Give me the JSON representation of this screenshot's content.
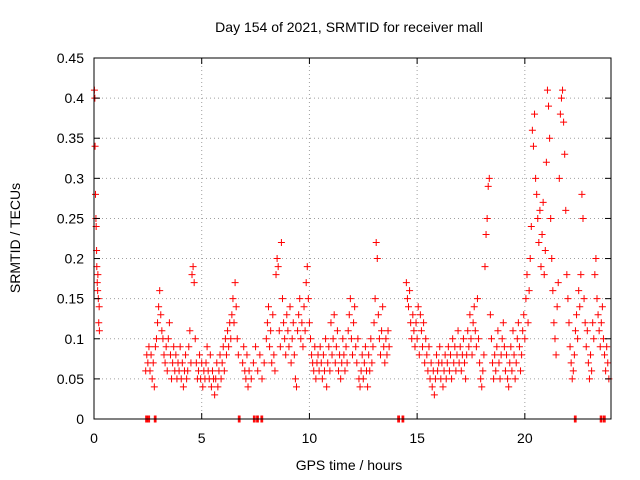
{
  "chart_data": {
    "type": "scatter",
    "title": "Day 154 of 2021, SRMTID for receiver mall",
    "xlabel": "GPS time / hours",
    "ylabel": "SRMTID / TECUs",
    "xlim": [
      0,
      24
    ],
    "ylim": [
      0,
      0.45
    ],
    "xticks": [
      0,
      5,
      10,
      15,
      20
    ],
    "yticks": [
      0,
      0.05,
      0.1,
      0.15,
      0.2,
      0.25,
      0.3,
      0.35,
      0.4,
      0.45
    ],
    "grid": true,
    "legend": "none",
    "marker": "plus",
    "color": "#ff0000",
    "points": [
      [
        0.02,
        0.41
      ],
      [
        0.04,
        0.4
      ],
      [
        0.05,
        0.34
      ],
      [
        0.07,
        0.28
      ],
      [
        0.09,
        0.25
      ],
      [
        0.1,
        0.24
      ],
      [
        0.12,
        0.21
      ],
      [
        0.13,
        0.19
      ],
      [
        0.15,
        0.17
      ],
      [
        0.17,
        0.16
      ],
      [
        0.18,
        0.18
      ],
      [
        0.2,
        0.15
      ],
      [
        0.22,
        0.12
      ],
      [
        0.24,
        0.14
      ],
      [
        0.25,
        0.11
      ],
      [
        2.4,
        0.06
      ],
      [
        2.45,
        0.08
      ],
      [
        2.5,
        0.07
      ],
      [
        2.55,
        0.09
      ],
      [
        2.6,
        0.06
      ],
      [
        2.65,
        0.08
      ],
      [
        2.7,
        0.05
      ],
      [
        2.75,
        0.07
      ],
      [
        2.8,
        0.04
      ],
      [
        2.85,
        0.09
      ],
      [
        2.9,
        0.1
      ],
      [
        2.95,
        0.12
      ],
      [
        3.0,
        0.14
      ],
      [
        3.05,
        0.16
      ],
      [
        3.1,
        0.13
      ],
      [
        3.15,
        0.11
      ],
      [
        3.2,
        0.1
      ],
      [
        3.25,
        0.08
      ],
      [
        3.3,
        0.07
      ],
      [
        3.35,
        0.09
      ],
      [
        3.4,
        0.06
      ],
      [
        3.45,
        0.1
      ],
      [
        3.5,
        0.12
      ],
      [
        3.55,
        0.08
      ],
      [
        3.6,
        0.05
      ],
      [
        3.65,
        0.07
      ],
      [
        3.7,
        0.09
      ],
      [
        3.75,
        0.06
      ],
      [
        3.8,
        0.08
      ],
      [
        3.85,
        0.05
      ],
      [
        3.9,
        0.07
      ],
      [
        3.95,
        0.06
      ],
      [
        4.0,
        0.09
      ],
      [
        4.05,
        0.05
      ],
      [
        4.1,
        0.07
      ],
      [
        4.15,
        0.04
      ],
      [
        4.2,
        0.06
      ],
      [
        4.25,
        0.08
      ],
      [
        4.3,
        0.05
      ],
      [
        4.35,
        0.06
      ],
      [
        4.4,
        0.09
      ],
      [
        4.45,
        0.11
      ],
      [
        4.5,
        0.07
      ],
      [
        4.55,
        0.18
      ],
      [
        4.6,
        0.19
      ],
      [
        4.65,
        0.17
      ],
      [
        4.7,
        0.1
      ],
      [
        4.75,
        0.07
      ],
      [
        4.8,
        0.05
      ],
      [
        4.85,
        0.06
      ],
      [
        4.9,
        0.08
      ],
      [
        4.95,
        0.05
      ],
      [
        5.0,
        0.07
      ],
      [
        5.05,
        0.04
      ],
      [
        5.1,
        0.06
      ],
      [
        5.15,
        0.05
      ],
      [
        5.2,
        0.07
      ],
      [
        5.25,
        0.09
      ],
      [
        5.3,
        0.06
      ],
      [
        5.35,
        0.05
      ],
      [
        5.4,
        0.08
      ],
      [
        5.45,
        0.04
      ],
      [
        5.5,
        0.06
      ],
      [
        5.55,
        0.05
      ],
      [
        5.6,
        0.03
      ],
      [
        5.65,
        0.05
      ],
      [
        5.7,
        0.07
      ],
      [
        5.75,
        0.04
      ],
      [
        5.8,
        0.06
      ],
      [
        5.85,
        0.08
      ],
      [
        5.9,
        0.05
      ],
      [
        5.95,
        0.07
      ],
      [
        6.0,
        0.09
      ],
      [
        6.05,
        0.06
      ],
      [
        6.1,
        0.1
      ],
      [
        6.15,
        0.08
      ],
      [
        6.2,
        0.11
      ],
      [
        6.25,
        0.09
      ],
      [
        6.3,
        0.12
      ],
      [
        6.35,
        0.1
      ],
      [
        6.4,
        0.13
      ],
      [
        6.45,
        0.15
      ],
      [
        6.5,
        0.12
      ],
      [
        6.55,
        0.17
      ],
      [
        6.6,
        0.14
      ],
      [
        6.65,
        0.1
      ],
      [
        6.7,
        0.08
      ],
      [
        6.9,
        0.07
      ],
      [
        6.95,
        0.09
      ],
      [
        7.0,
        0.06
      ],
      [
        7.05,
        0.05
      ],
      [
        7.1,
        0.08
      ],
      [
        7.15,
        0.04
      ],
      [
        7.2,
        0.06
      ],
      [
        7.3,
        0.05
      ],
      [
        7.4,
        0.07
      ],
      [
        7.5,
        0.09
      ],
      [
        7.6,
        0.06
      ],
      [
        7.7,
        0.08
      ],
      [
        7.8,
        0.05
      ],
      [
        7.9,
        0.07
      ],
      [
        8.0,
        0.1
      ],
      [
        8.05,
        0.12
      ],
      [
        8.1,
        0.14
      ],
      [
        8.15,
        0.09
      ],
      [
        8.2,
        0.11
      ],
      [
        8.25,
        0.07
      ],
      [
        8.3,
        0.13
      ],
      [
        8.35,
        0.08
      ],
      [
        8.4,
        0.06
      ],
      [
        8.45,
        0.18
      ],
      [
        8.5,
        0.2
      ],
      [
        8.55,
        0.19
      ],
      [
        8.6,
        0.11
      ],
      [
        8.65,
        0.09
      ],
      [
        8.7,
        0.22
      ],
      [
        8.75,
        0.15
      ],
      [
        8.8,
        0.12
      ],
      [
        8.85,
        0.1
      ],
      [
        8.9,
        0.08
      ],
      [
        8.95,
        0.13
      ],
      [
        9.0,
        0.11
      ],
      [
        9.05,
        0.09
      ],
      [
        9.1,
        0.14
      ],
      [
        9.15,
        0.07
      ],
      [
        9.2,
        0.1
      ],
      [
        9.25,
        0.12
      ],
      [
        9.3,
        0.08
      ],
      [
        9.35,
        0.05
      ],
      [
        9.4,
        0.04
      ],
      [
        9.45,
        0.11
      ],
      [
        9.5,
        0.13
      ],
      [
        9.55,
        0.15
      ],
      [
        9.6,
        0.1
      ],
      [
        9.65,
        0.12
      ],
      [
        9.7,
        0.09
      ],
      [
        9.75,
        0.14
      ],
      [
        9.8,
        0.11
      ],
      [
        9.85,
        0.17
      ],
      [
        9.9,
        0.19
      ],
      [
        9.95,
        0.15
      ],
      [
        10.0,
        0.12
      ],
      [
        10.05,
        0.1
      ],
      [
        10.1,
        0.08
      ],
      [
        10.15,
        0.07
      ],
      [
        10.2,
        0.06
      ],
      [
        10.25,
        0.09
      ],
      [
        10.3,
        0.05
      ],
      [
        10.35,
        0.07
      ],
      [
        10.4,
        0.08
      ],
      [
        10.45,
        0.06
      ],
      [
        10.5,
        0.09
      ],
      [
        10.55,
        0.07
      ],
      [
        10.6,
        0.05
      ],
      [
        10.65,
        0.08
      ],
      [
        10.7,
        0.06
      ],
      [
        10.75,
        0.1
      ],
      [
        10.8,
        0.04
      ],
      [
        10.85,
        0.07
      ],
      [
        10.9,
        0.09
      ],
      [
        10.95,
        0.06
      ],
      [
        11.0,
        0.12
      ],
      [
        11.05,
        0.08
      ],
      [
        11.1,
        0.1
      ],
      [
        11.15,
        0.13
      ],
      [
        11.2,
        0.07
      ],
      [
        11.25,
        0.09
      ],
      [
        11.3,
        0.11
      ],
      [
        11.35,
        0.06
      ],
      [
        11.4,
        0.08
      ],
      [
        11.45,
        0.05
      ],
      [
        11.5,
        0.07
      ],
      [
        11.55,
        0.1
      ],
      [
        11.6,
        0.08
      ],
      [
        11.65,
        0.06
      ],
      [
        11.7,
        0.09
      ],
      [
        11.75,
        0.07
      ],
      [
        11.8,
        0.11
      ],
      [
        11.85,
        0.13
      ],
      [
        11.9,
        0.15
      ],
      [
        11.95,
        0.1
      ],
      [
        12.0,
        0.08
      ],
      [
        12.05,
        0.12
      ],
      [
        12.1,
        0.14
      ],
      [
        12.15,
        0.09
      ],
      [
        12.2,
        0.07
      ],
      [
        12.25,
        0.1
      ],
      [
        12.3,
        0.05
      ],
      [
        12.35,
        0.04
      ],
      [
        12.4,
        0.06
      ],
      [
        12.45,
        0.08
      ],
      [
        12.5,
        0.05
      ],
      [
        12.55,
        0.07
      ],
      [
        12.6,
        0.09
      ],
      [
        12.65,
        0.06
      ],
      [
        12.7,
        0.04
      ],
      [
        12.75,
        0.08
      ],
      [
        12.8,
        0.06
      ],
      [
        12.85,
        0.1
      ],
      [
        12.9,
        0.07
      ],
      [
        12.95,
        0.09
      ],
      [
        13.0,
        0.12
      ],
      [
        13.05,
        0.15
      ],
      [
        13.1,
        0.22
      ],
      [
        13.15,
        0.2
      ],
      [
        13.2,
        0.13
      ],
      [
        13.25,
        0.1
      ],
      [
        13.3,
        0.08
      ],
      [
        13.35,
        0.11
      ],
      [
        13.4,
        0.14
      ],
      [
        13.45,
        0.09
      ],
      [
        13.5,
        0.07
      ],
      [
        13.55,
        0.1
      ],
      [
        13.6,
        0.08
      ],
      [
        13.65,
        0.11
      ],
      [
        13.7,
        0.09
      ],
      [
        14.5,
        0.17
      ],
      [
        14.55,
        0.15
      ],
      [
        14.6,
        0.14
      ],
      [
        14.65,
        0.16
      ],
      [
        14.7,
        0.12
      ],
      [
        14.75,
        0.1
      ],
      [
        14.8,
        0.13
      ],
      [
        14.85,
        0.11
      ],
      [
        14.9,
        0.09
      ],
      [
        14.95,
        0.12
      ],
      [
        15.0,
        0.1
      ],
      [
        15.05,
        0.14
      ],
      [
        15.1,
        0.08
      ],
      [
        15.15,
        0.13
      ],
      [
        15.2,
        0.11
      ],
      [
        15.25,
        0.09
      ],
      [
        15.3,
        0.12
      ],
      [
        15.35,
        0.07
      ],
      [
        15.4,
        0.1
      ],
      [
        15.45,
        0.08
      ],
      [
        15.5,
        0.06
      ],
      [
        15.55,
        0.09
      ],
      [
        15.6,
        0.05
      ],
      [
        15.65,
        0.07
      ],
      [
        15.7,
        0.04
      ],
      [
        15.75,
        0.06
      ],
      [
        15.8,
        0.03
      ],
      [
        15.85,
        0.05
      ],
      [
        15.9,
        0.08
      ],
      [
        15.95,
        0.06
      ],
      [
        16.0,
        0.07
      ],
      [
        16.05,
        0.09
      ],
      [
        16.1,
        0.05
      ],
      [
        16.15,
        0.07
      ],
      [
        16.2,
        0.04
      ],
      [
        16.25,
        0.06
      ],
      [
        16.3,
        0.08
      ],
      [
        16.35,
        0.05
      ],
      [
        16.4,
        0.07
      ],
      [
        16.45,
        0.09
      ],
      [
        16.5,
        0.06
      ],
      [
        16.55,
        0.08
      ],
      [
        16.6,
        0.05
      ],
      [
        16.65,
        0.1
      ],
      [
        16.7,
        0.07
      ],
      [
        16.75,
        0.09
      ],
      [
        16.8,
        0.06
      ],
      [
        16.85,
        0.08
      ],
      [
        16.9,
        0.11
      ],
      [
        16.95,
        0.07
      ],
      [
        17.0,
        0.09
      ],
      [
        17.05,
        0.06
      ],
      [
        17.1,
        0.08
      ],
      [
        17.15,
        0.1
      ],
      [
        17.2,
        0.07
      ],
      [
        17.25,
        0.05
      ],
      [
        17.3,
        0.08
      ],
      [
        17.35,
        0.11
      ],
      [
        17.4,
        0.09
      ],
      [
        17.45,
        0.13
      ],
      [
        17.5,
        0.1
      ],
      [
        17.55,
        0.08
      ],
      [
        17.6,
        0.12
      ],
      [
        17.65,
        0.14
      ],
      [
        17.7,
        0.11
      ],
      [
        17.75,
        0.09
      ],
      [
        17.8,
        0.15
      ],
      [
        17.85,
        0.1
      ],
      [
        17.9,
        0.07
      ],
      [
        17.95,
        0.05
      ],
      [
        18.0,
        0.04
      ],
      [
        18.05,
        0.06
      ],
      [
        18.1,
        0.08
      ],
      [
        18.15,
        0.19
      ],
      [
        18.2,
        0.23
      ],
      [
        18.25,
        0.25
      ],
      [
        18.3,
        0.29
      ],
      [
        18.35,
        0.3
      ],
      [
        18.4,
        0.13
      ],
      [
        18.45,
        0.1
      ],
      [
        18.5,
        0.07
      ],
      [
        18.55,
        0.05
      ],
      [
        18.6,
        0.08
      ],
      [
        18.65,
        0.06
      ],
      [
        18.7,
        0.09
      ],
      [
        18.75,
        0.11
      ],
      [
        18.8,
        0.07
      ],
      [
        18.85,
        0.05
      ],
      [
        18.9,
        0.08
      ],
      [
        18.95,
        0.1
      ],
      [
        19.0,
        0.12
      ],
      [
        19.05,
        0.09
      ],
      [
        19.1,
        0.06
      ],
      [
        19.15,
        0.08
      ],
      [
        19.2,
        0.05
      ],
      [
        19.25,
        0.04
      ],
      [
        19.3,
        0.07
      ],
      [
        19.35,
        0.09
      ],
      [
        19.4,
        0.06
      ],
      [
        19.45,
        0.11
      ],
      [
        19.5,
        0.08
      ],
      [
        19.55,
        0.05
      ],
      [
        19.6,
        0.07
      ],
      [
        19.65,
        0.1
      ],
      [
        19.7,
        0.12
      ],
      [
        19.75,
        0.09
      ],
      [
        19.8,
        0.06
      ],
      [
        19.85,
        0.08
      ],
      [
        19.9,
        0.11
      ],
      [
        19.95,
        0.13
      ],
      [
        20.0,
        0.1
      ],
      [
        20.05,
        0.15
      ],
      [
        20.1,
        0.18
      ],
      [
        20.15,
        0.12
      ],
      [
        20.2,
        0.16
      ],
      [
        20.25,
        0.2
      ],
      [
        20.3,
        0.24
      ],
      [
        20.35,
        0.36
      ],
      [
        20.4,
        0.34
      ],
      [
        20.45,
        0.38
      ],
      [
        20.5,
        0.3
      ],
      [
        20.55,
        0.28
      ],
      [
        20.6,
        0.25
      ],
      [
        20.65,
        0.22
      ],
      [
        20.7,
        0.26
      ],
      [
        20.75,
        0.19
      ],
      [
        20.8,
        0.23
      ],
      [
        20.85,
        0.27
      ],
      [
        20.9,
        0.18
      ],
      [
        20.95,
        0.21
      ],
      [
        21.0,
        0.32
      ],
      [
        21.05,
        0.41
      ],
      [
        21.1,
        0.39
      ],
      [
        21.15,
        0.35
      ],
      [
        21.2,
        0.25
      ],
      [
        21.25,
        0.2
      ],
      [
        21.3,
        0.16
      ],
      [
        21.35,
        0.12
      ],
      [
        21.4,
        0.1
      ],
      [
        21.45,
        0.08
      ],
      [
        21.5,
        0.14
      ],
      [
        21.55,
        0.17
      ],
      [
        21.6,
        0.3
      ],
      [
        21.65,
        0.38
      ],
      [
        21.7,
        0.4
      ],
      [
        21.75,
        0.41
      ],
      [
        21.8,
        0.37
      ],
      [
        21.85,
        0.33
      ],
      [
        21.9,
        0.26
      ],
      [
        21.95,
        0.18
      ],
      [
        22.0,
        0.15
      ],
      [
        22.05,
        0.12
      ],
      [
        22.1,
        0.09
      ],
      [
        22.15,
        0.07
      ],
      [
        22.2,
        0.05
      ],
      [
        22.25,
        0.06
      ],
      [
        22.3,
        0.08
      ],
      [
        22.35,
        0.11
      ],
      [
        22.4,
        0.13
      ],
      [
        22.45,
        0.1
      ],
      [
        22.5,
        0.16
      ],
      [
        22.55,
        0.14
      ],
      [
        22.6,
        0.18
      ],
      [
        22.65,
        0.28
      ],
      [
        22.7,
        0.25
      ],
      [
        22.75,
        0.15
      ],
      [
        22.8,
        0.12
      ],
      [
        22.85,
        0.09
      ],
      [
        22.9,
        0.11
      ],
      [
        22.95,
        0.07
      ],
      [
        23.0,
        0.05
      ],
      [
        23.05,
        0.08
      ],
      [
        23.1,
        0.06
      ],
      [
        23.15,
        0.12
      ],
      [
        23.2,
        0.1
      ],
      [
        23.25,
        0.18
      ],
      [
        23.3,
        0.2
      ],
      [
        23.35,
        0.15
      ],
      [
        23.4,
        0.13
      ],
      [
        23.45,
        0.11
      ],
      [
        23.5,
        0.09
      ],
      [
        23.55,
        0.12
      ],
      [
        23.6,
        0.14
      ],
      [
        23.65,
        0.1
      ],
      [
        23.7,
        0.08
      ],
      [
        23.75,
        0.06
      ],
      [
        23.8,
        0.09
      ],
      [
        23.85,
        0.07
      ],
      [
        23.9,
        0.05
      ]
    ],
    "zero_points": [
      2.4,
      2.5,
      2.8,
      6.7,
      7.4,
      7.55,
      7.75,
      14.1,
      14.3,
      22.3,
      23.5,
      23.65
    ]
  }
}
